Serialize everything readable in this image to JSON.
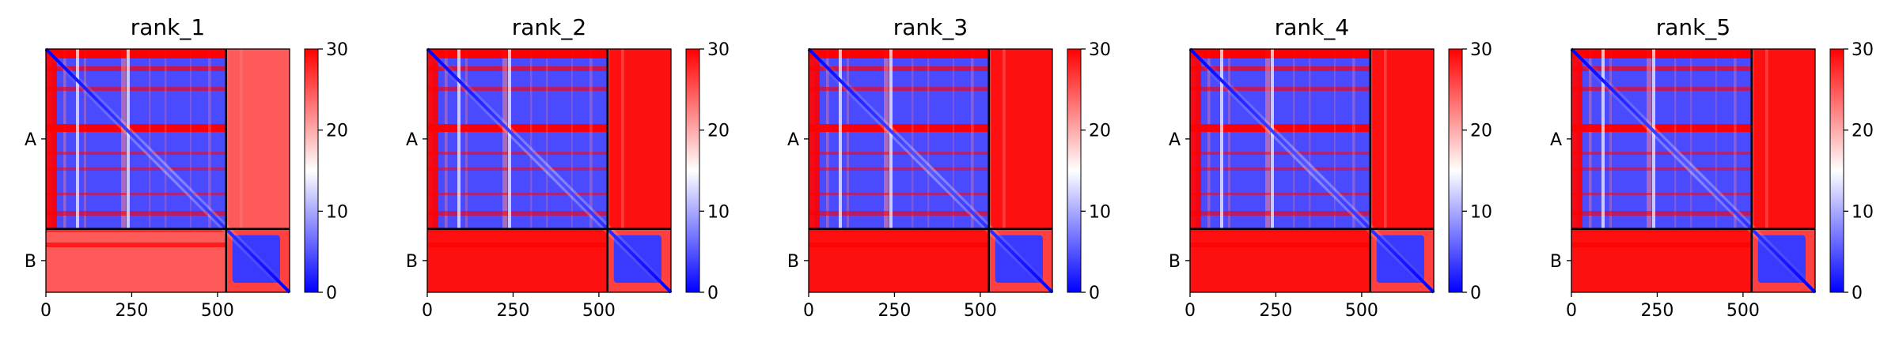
{
  "figure": {
    "colors": {
      "low": "#0000ff",
      "mid": "#ffffff",
      "high": "#ff0000",
      "border": "#000000"
    }
  },
  "chart_data": [
    {
      "type": "heatmap",
      "title": "rank_1",
      "chains": [
        "A",
        "B"
      ],
      "chain_boundary": 525,
      "sequence_length": 710,
      "xticks": [
        0,
        250,
        500
      ],
      "xlim": [
        0,
        710
      ],
      "colorbar": {
        "min": 0,
        "max": 30,
        "ticks": [
          0,
          10,
          20,
          30
        ]
      },
      "inter_chain_error": "mixed",
      "colormap": "bwr"
    },
    {
      "type": "heatmap",
      "title": "rank_2",
      "chains": [
        "A",
        "B"
      ],
      "chain_boundary": 525,
      "sequence_length": 710,
      "xticks": [
        0,
        250,
        500
      ],
      "xlim": [
        0,
        710
      ],
      "colorbar": {
        "min": 0,
        "max": 30,
        "ticks": [
          0,
          10,
          20,
          30
        ]
      },
      "inter_chain_error": "high",
      "colormap": "bwr"
    },
    {
      "type": "heatmap",
      "title": "rank_3",
      "chains": [
        "A",
        "B"
      ],
      "chain_boundary": 525,
      "sequence_length": 710,
      "xticks": [
        0,
        250,
        500
      ],
      "xlim": [
        0,
        710
      ],
      "colorbar": {
        "min": 0,
        "max": 30,
        "ticks": [
          0,
          10,
          20,
          30
        ]
      },
      "inter_chain_error": "high",
      "colormap": "bwr"
    },
    {
      "type": "heatmap",
      "title": "rank_4",
      "chains": [
        "A",
        "B"
      ],
      "chain_boundary": 525,
      "sequence_length": 710,
      "xticks": [
        0,
        250,
        500
      ],
      "xlim": [
        0,
        710
      ],
      "colorbar": {
        "min": 0,
        "max": 30,
        "ticks": [
          0,
          10,
          20,
          30
        ]
      },
      "inter_chain_error": "high",
      "colormap": "bwr"
    },
    {
      "type": "heatmap",
      "title": "rank_5",
      "chains": [
        "A",
        "B"
      ],
      "chain_boundary": 525,
      "sequence_length": 710,
      "xticks": [
        0,
        250,
        500
      ],
      "xlim": [
        0,
        710
      ],
      "colorbar": {
        "min": 0,
        "max": 30,
        "ticks": [
          0,
          10,
          20,
          30
        ]
      },
      "inter_chain_error": "high",
      "colormap": "bwr"
    }
  ]
}
